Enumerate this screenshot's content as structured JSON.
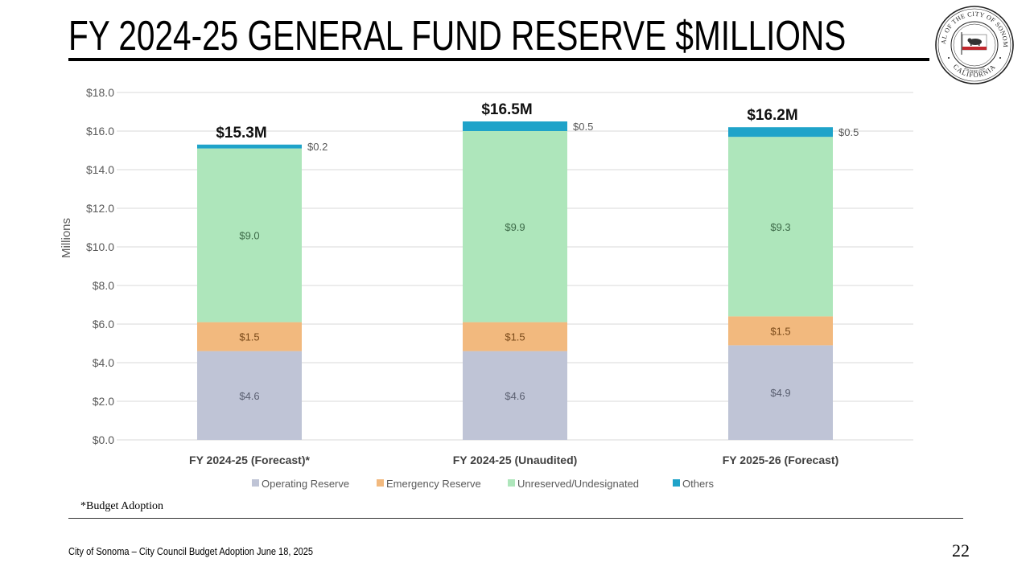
{
  "slide": {
    "title": "FY 2024-25 GENERAL FUND RESERVE $MILLIONS",
    "seal": {
      "top_text": "SEAL OF THE CITY OF SONOMA",
      "bottom_text": "CALIFORNIA",
      "founded_text": "FOUNDED 1835"
    },
    "footnote": "*Budget Adoption",
    "footer_text": "City of Sonoma – City Council Budget Adoption June 18, 2025",
    "page_number": "22"
  },
  "colors": {
    "operating": "#BFC4D6",
    "emergency": "#F2B97E",
    "unreserved": "#AEE6BB",
    "others": "#1FA3C9",
    "grid": "#D9D9D9",
    "axis_text": "#595959"
  },
  "chart_data": {
    "type": "bar",
    "stacked": true,
    "title": "",
    "xlabel": "",
    "ylabel": "Millions",
    "ylim": [
      0,
      18
    ],
    "yticks": [
      0,
      2,
      4,
      6,
      8,
      10,
      12,
      14,
      16,
      18
    ],
    "ytick_labels": [
      "$0.0",
      "$2.0",
      "$4.0",
      "$6.0",
      "$8.0",
      "$10.0",
      "$12.0",
      "$14.0",
      "$16.0",
      "$18.0"
    ],
    "grid": true,
    "legend_position": "bottom",
    "categories": [
      "FY 2024-25 (Forecast)*",
      "FY 2024-25 (Unaudited)",
      "FY 2025-26 (Forecast)"
    ],
    "series": [
      {
        "name": "Operating Reserve",
        "key": "operating",
        "values": [
          4.6,
          4.6,
          4.9
        ],
        "labels": [
          "$4.6",
          "$4.6",
          "$4.9"
        ]
      },
      {
        "name": "Emergency Reserve",
        "key": "emergency",
        "values": [
          1.5,
          1.5,
          1.5
        ],
        "labels": [
          "$1.5",
          "$1.5",
          "$1.5"
        ]
      },
      {
        "name": "Unreserved/Undesignated",
        "key": "unreserved",
        "values": [
          9.0,
          9.9,
          9.3
        ],
        "labels": [
          "$9.0",
          "$9.9",
          "$9.3"
        ]
      },
      {
        "name": "Others",
        "key": "others",
        "values": [
          0.2,
          0.5,
          0.5
        ],
        "labels": [
          "$0.2",
          "$0.5",
          "$0.5"
        ]
      }
    ],
    "totals": [
      15.3,
      16.5,
      16.2
    ],
    "total_labels": [
      "$15.3M",
      "$16.5M",
      "$16.2M"
    ]
  }
}
